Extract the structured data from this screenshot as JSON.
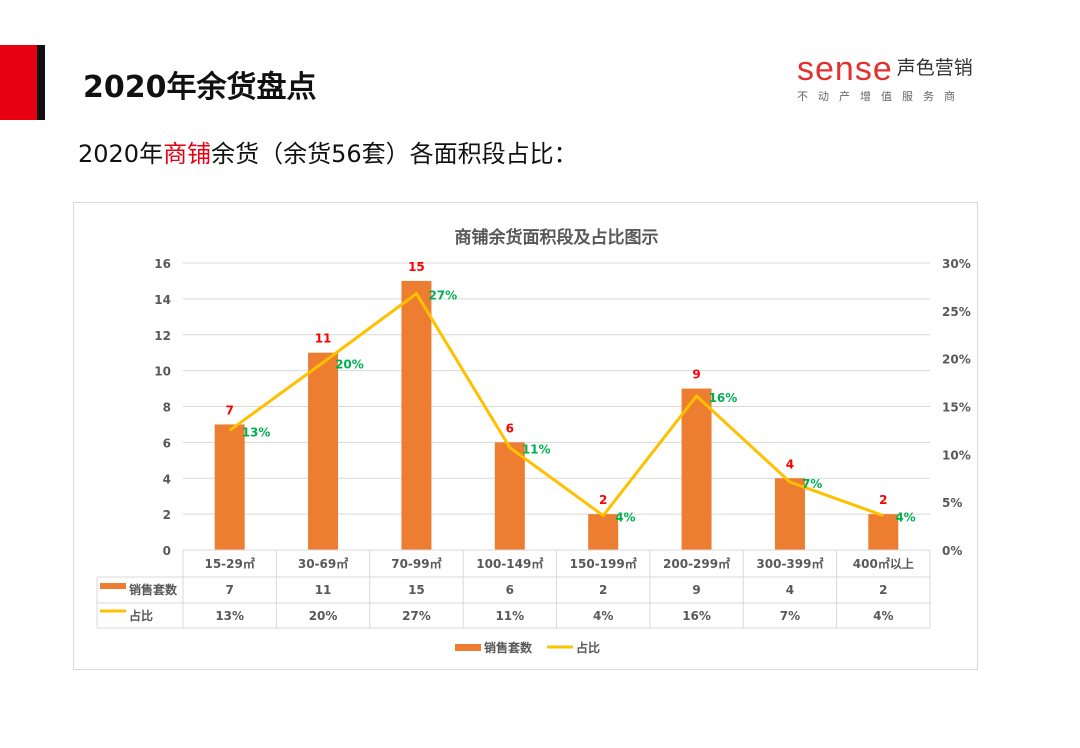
{
  "header": {
    "title": "2020年余货盘点",
    "subtitle_pre": "2020年",
    "subtitle_highlight": "商铺",
    "subtitle_post": "余货（余货56套）各面积段占比："
  },
  "logo": {
    "brand": "sense",
    "name": "声色营销",
    "tagline": "不动产增值服务商"
  },
  "colors": {
    "bar": "#ed7d31",
    "line": "#ffc000",
    "bar_label": "#ff0000",
    "pct_label": "#00b050",
    "accent": "#e60012"
  },
  "chart_data": {
    "type": "bar+line",
    "title": "商铺余货面积段及占比图示",
    "categories": [
      "15-29㎡",
      "30-69㎡",
      "70-99㎡",
      "100-149㎡",
      "150-199㎡",
      "200-299㎡",
      "300-399㎡",
      "400㎡以上"
    ],
    "series": [
      {
        "name": "销售套数",
        "type": "bar",
        "axis": "left",
        "values": [
          7,
          11,
          15,
          6,
          2,
          9,
          4,
          2
        ],
        "labels": [
          "7",
          "11",
          "15",
          "6",
          "2",
          "9",
          "4",
          "2"
        ]
      },
      {
        "name": "占比",
        "type": "line",
        "axis": "right",
        "values": [
          12.5,
          19.6,
          26.8,
          10.7,
          3.6,
          16.1,
          7.1,
          3.6
        ],
        "labels": [
          "13%",
          "20%",
          "27%",
          "11%",
          "4%",
          "16%",
          "7%",
          "4%"
        ]
      }
    ],
    "ylim": [
      0,
      16
    ],
    "yticks": [
      "0",
      "2",
      "4",
      "6",
      "8",
      "10",
      "12",
      "14",
      "16"
    ],
    "y2lim": [
      0,
      30
    ],
    "y2ticks": [
      "0%",
      "5%",
      "10%",
      "15%",
      "20%",
      "25%",
      "30%"
    ],
    "grid": true,
    "legend": "bottom",
    "data_table": true
  }
}
